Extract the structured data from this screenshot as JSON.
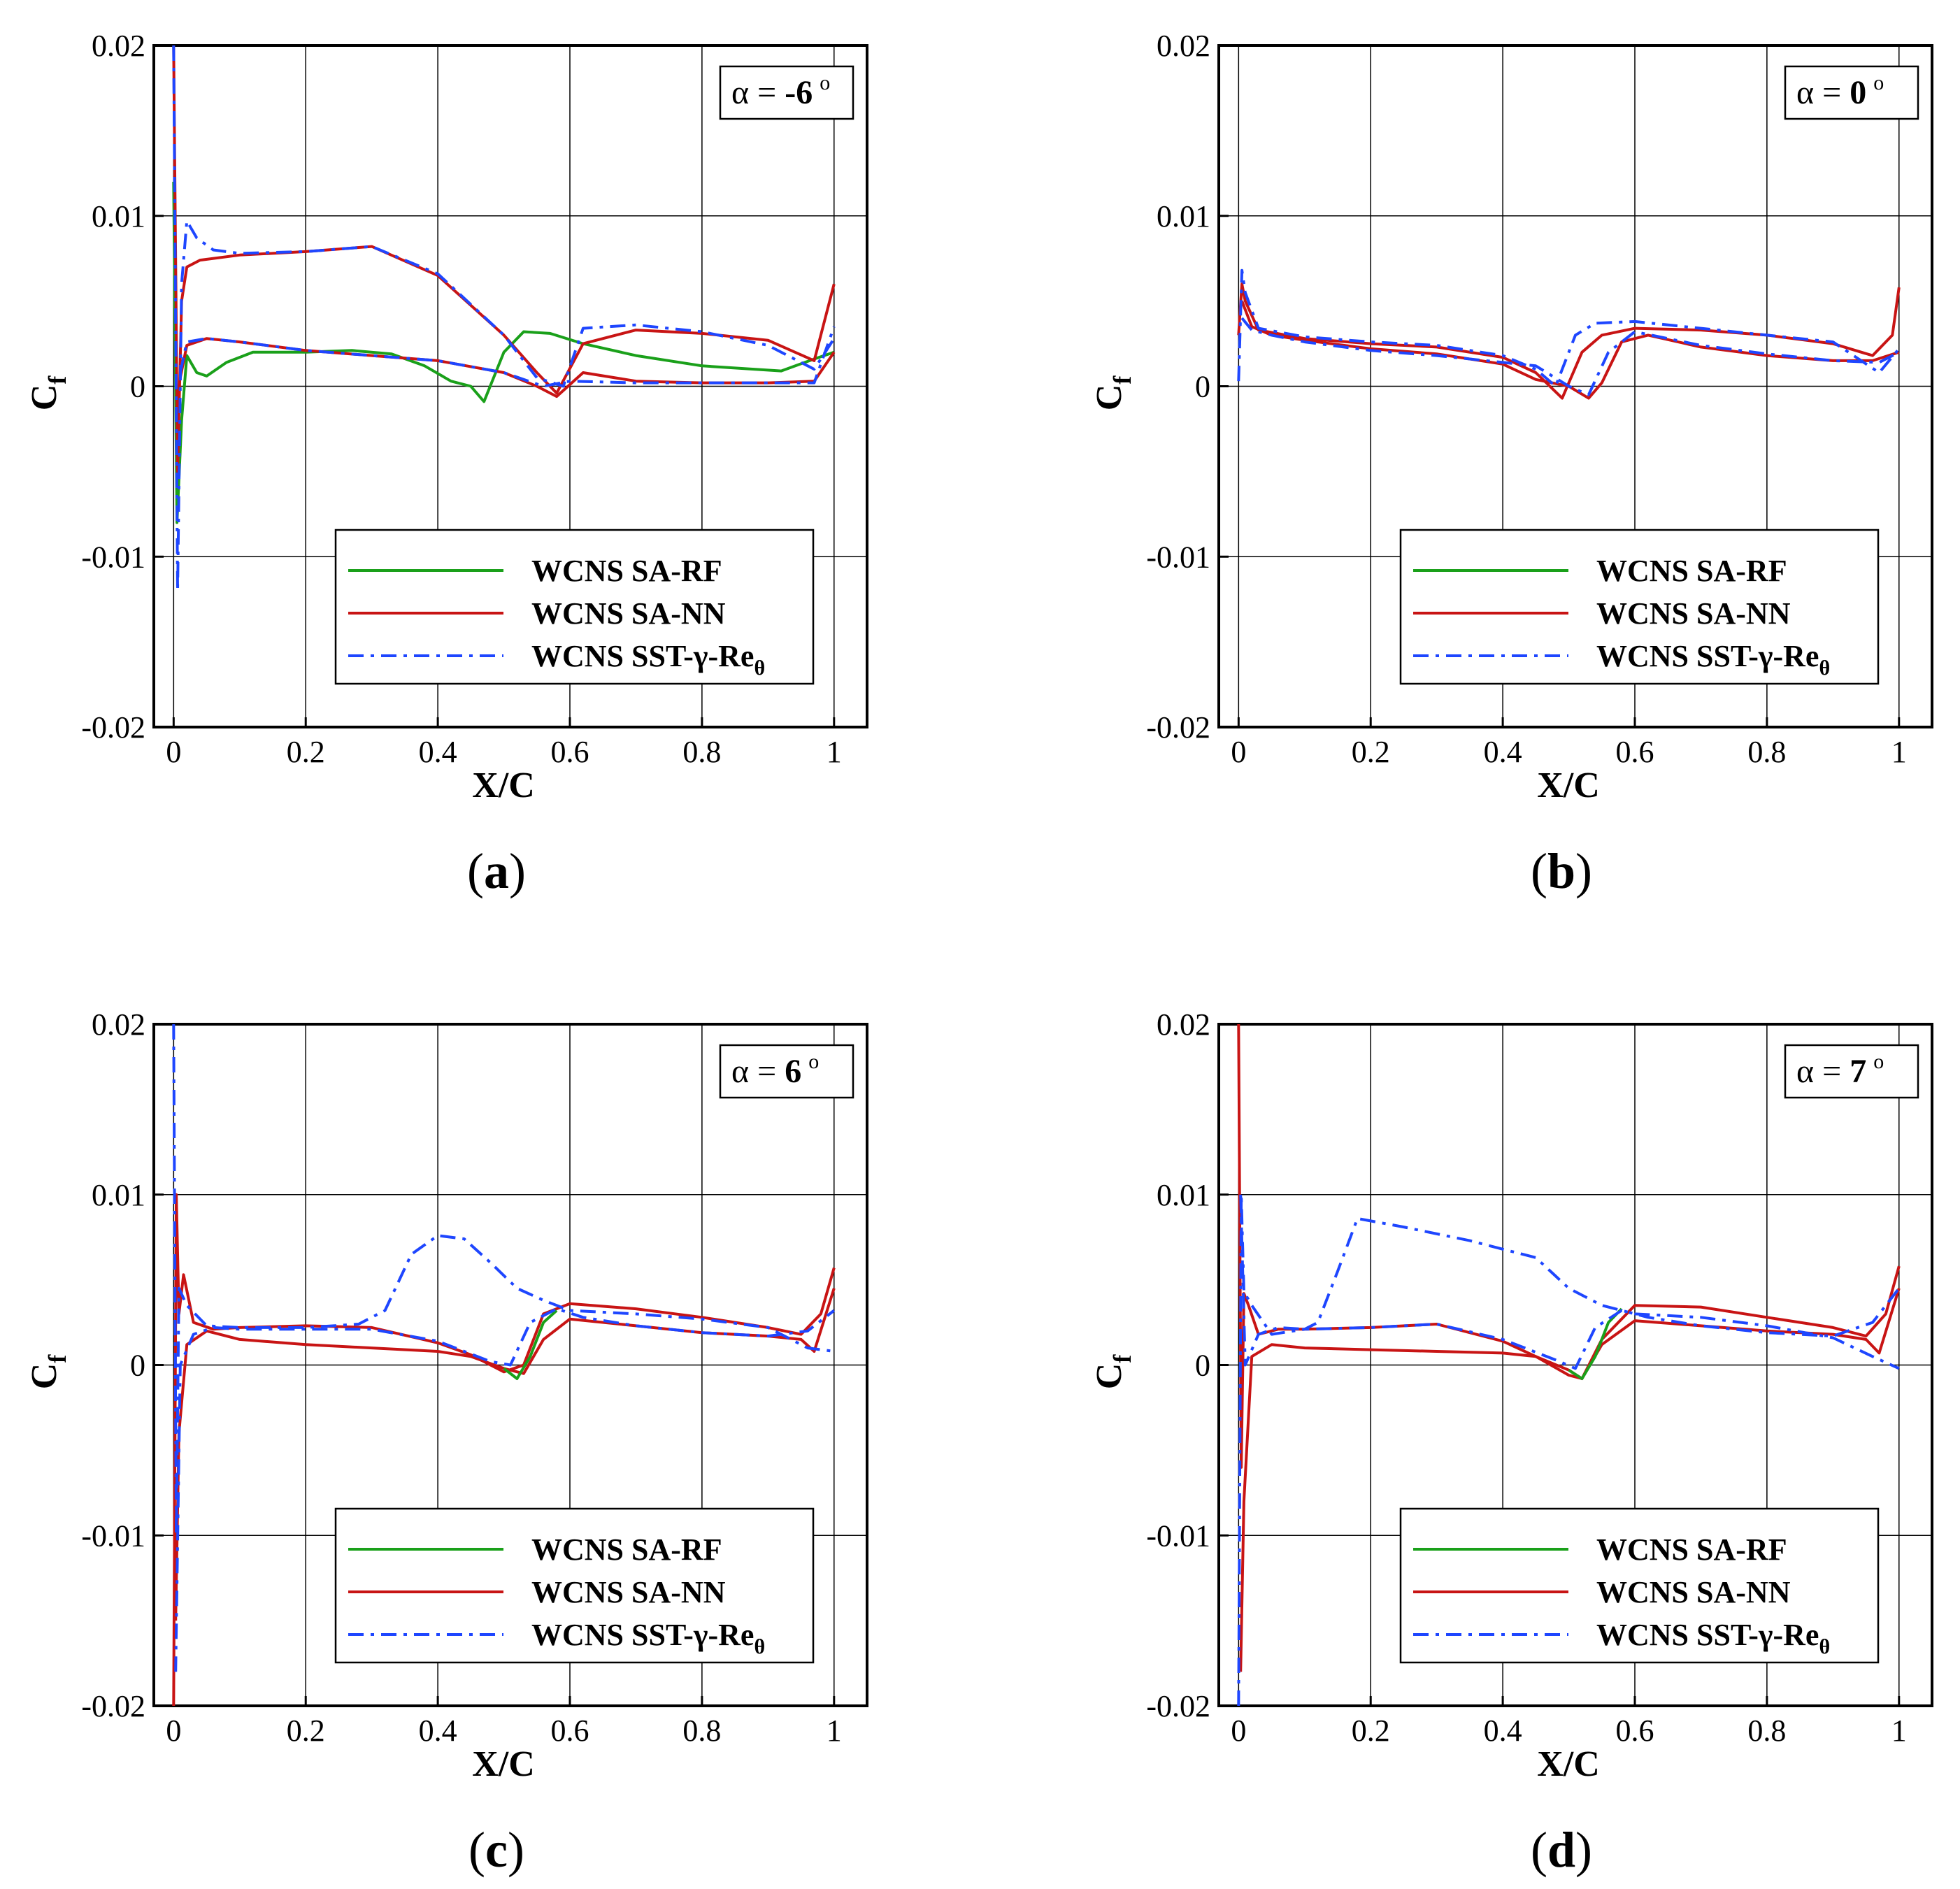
{
  "figure": {
    "ylabel_main": "C",
    "ylabel_sub": "f",
    "xlabel": "X/C",
    "legend": [
      {
        "label": "WCNS SA-RF",
        "sub": "",
        "color": "#1aa01a",
        "dash": "solid"
      },
      {
        "label": "WCNS SA-NN",
        "sub": "",
        "color": "#c81414",
        "dash": "solid"
      },
      {
        "label": "WCNS SST-γ-Re",
        "sub": "θ",
        "color": "#1e46ff",
        "dash": "dashdot"
      }
    ]
  },
  "chart_data": [
    {
      "type": "line",
      "caption_letter": "a",
      "alpha_label": "α = ",
      "alpha_value": "-6",
      "deg": "o",
      "xlabel": "X/C",
      "ylabel": "Cf",
      "xlim": [
        -0.03,
        1.05
      ],
      "ylim": [
        -0.02,
        0.02
      ],
      "xticks": [
        "0",
        "0.2",
        "0.4",
        "0.6",
        "0.8",
        "1"
      ],
      "yticks": [
        "-0.02",
        "-0.01",
        "0",
        "0.01",
        "0.02"
      ],
      "series": [
        {
          "name": "WCNS SA-RF",
          "x": [
            0,
            0.005,
            0.012,
            0.02,
            0.035,
            0.05,
            0.08,
            0.12,
            0.2,
            0.27,
            0.33,
            0.38,
            0.42,
            0.45,
            0.47,
            0.5,
            0.53,
            0.57,
            0.62,
            0.7,
            0.8,
            0.92,
            0.97,
            1.0
          ],
          "y": [
            0.012,
            -0.008,
            -0.002,
            0.0018,
            0.0008,
            0.0006,
            0.0014,
            0.002,
            0.002,
            0.0021,
            0.0019,
            0.0012,
            0.0003,
            0.0,
            -0.0009,
            0.002,
            0.0032,
            0.0031,
            0.0025,
            0.0018,
            0.0012,
            0.0009,
            0.0016,
            0.002
          ]
        },
        {
          "name": "WCNS SA-NN (upper)",
          "x": [
            0,
            0.006,
            0.012,
            0.02,
            0.04,
            0.1,
            0.2,
            0.3,
            0.4,
            0.5,
            0.55,
            0.58,
            0.62,
            0.7,
            0.8,
            0.9,
            0.97,
            1.0
          ],
          "y": [
            0.02,
            -0.005,
            0.005,
            0.007,
            0.0074,
            0.0077,
            0.0079,
            0.0082,
            0.0065,
            0.003,
            0.0008,
            -0.0004,
            0.0025,
            0.0033,
            0.0031,
            0.0027,
            0.0015,
            0.006
          ]
        },
        {
          "name": "WCNS SA-NN (lower)",
          "x": [
            0.01,
            0.02,
            0.05,
            0.1,
            0.2,
            0.3,
            0.4,
            0.5,
            0.55,
            0.58,
            0.62,
            0.7,
            0.8,
            0.9,
            0.97,
            1.0
          ],
          "y": [
            0.0005,
            0.0024,
            0.0028,
            0.0026,
            0.0021,
            0.0018,
            0.0015,
            0.0008,
            0.0,
            -0.0006,
            0.0008,
            0.0003,
            0.0002,
            0.0002,
            0.0003,
            0.002
          ]
        },
        {
          "name": "WCNS SST-γ-Reθ (upper)",
          "x": [
            0,
            0.006,
            0.012,
            0.02,
            0.035,
            0.06,
            0.1,
            0.2,
            0.3,
            0.4,
            0.5,
            0.55,
            0.59,
            0.62,
            0.7,
            0.8,
            0.9,
            0.97,
            1.0
          ],
          "y": [
            0.02,
            -0.012,
            0.006,
            0.0097,
            0.0087,
            0.008,
            0.0078,
            0.0079,
            0.0082,
            0.0066,
            0.003,
            0.0005,
            0.0,
            0.0034,
            0.0036,
            0.0032,
            0.0024,
            0.001,
            0.0028
          ]
        },
        {
          "name": "WCNS SST-γ-Reθ (lower)",
          "x": [
            0.01,
            0.02,
            0.05,
            0.1,
            0.2,
            0.3,
            0.4,
            0.5,
            0.56,
            0.6,
            0.7,
            0.8,
            0.9,
            0.97,
            1.0
          ],
          "y": [
            0.0008,
            0.0026,
            0.0028,
            0.0026,
            0.0021,
            0.0018,
            0.0015,
            0.0008,
            0.0,
            0.0003,
            0.0002,
            0.0002,
            0.0002,
            0.0002,
            0.0035
          ]
        }
      ]
    },
    {
      "type": "line",
      "caption_letter": "b",
      "alpha_label": "α = ",
      "alpha_value": "0",
      "deg": "o",
      "xlabel": "X/C",
      "ylabel": "Cf",
      "xlim": [
        -0.03,
        1.05
      ],
      "ylim": [
        -0.02,
        0.02
      ],
      "xticks": [
        "0",
        "0.2",
        "0.4",
        "0.6",
        "0.8",
        "1"
      ],
      "yticks": [
        "-0.02",
        "-0.01",
        "0",
        "0.01",
        "0.02"
      ],
      "series": [
        {
          "name": "WCNS SA-NN (upper)",
          "x": [
            0,
            0.005,
            0.01,
            0.03,
            0.1,
            0.2,
            0.3,
            0.4,
            0.45,
            0.49,
            0.52,
            0.55,
            0.6,
            0.7,
            0.8,
            0.9,
            0.96,
            0.99,
            1.0
          ],
          "y": [
            0.003,
            0.006,
            0.005,
            0.0033,
            0.0028,
            0.0025,
            0.0023,
            0.0017,
            0.0008,
            -0.0007,
            0.002,
            0.003,
            0.0034,
            0.0033,
            0.003,
            0.0025,
            0.0018,
            0.003,
            0.0058
          ]
        },
        {
          "name": "WCNS SA-NN (lower)",
          "x": [
            0.005,
            0.02,
            0.05,
            0.1,
            0.2,
            0.3,
            0.4,
            0.45,
            0.5,
            0.53,
            0.55,
            0.58,
            0.62,
            0.7,
            0.8,
            0.9,
            0.96,
            1.0
          ],
          "y": [
            0.005,
            0.0035,
            0.003,
            0.0027,
            0.0022,
            0.0019,
            0.0013,
            0.0004,
            0.0,
            -0.0007,
            0.0002,
            0.0026,
            0.003,
            0.0023,
            0.0018,
            0.0015,
            0.0015,
            0.002
          ]
        },
        {
          "name": "WCNS SST-γ-Reθ (upper)",
          "x": [
            0,
            0.005,
            0.01,
            0.03,
            0.1,
            0.2,
            0.3,
            0.4,
            0.45,
            0.48,
            0.51,
            0.54,
            0.6,
            0.7,
            0.8,
            0.9,
            0.97,
            1.0
          ],
          "y": [
            0.0003,
            0.0068,
            0.0055,
            0.0034,
            0.0029,
            0.0026,
            0.0024,
            0.0018,
            0.001,
            0.0,
            0.003,
            0.0037,
            0.0038,
            0.0034,
            0.003,
            0.0026,
            0.0008,
            0.0022
          ]
        },
        {
          "name": "WCNS SST-γ-Reθ (lower)",
          "x": [
            0.005,
            0.02,
            0.05,
            0.1,
            0.2,
            0.3,
            0.4,
            0.45,
            0.5,
            0.53,
            0.56,
            0.6,
            0.7,
            0.8,
            0.9,
            0.97,
            1.0
          ],
          "y": [
            0.004,
            0.0033,
            0.003,
            0.0026,
            0.0021,
            0.0018,
            0.0014,
            0.0012,
            0.0,
            -0.0005,
            0.002,
            0.0032,
            0.0024,
            0.0019,
            0.0015,
            0.0014,
            0.002
          ]
        }
      ]
    },
    {
      "type": "line",
      "caption_letter": "c",
      "alpha_label": "α = ",
      "alpha_value": "6",
      "deg": "o",
      "xlabel": "X/C",
      "ylabel": "Cf",
      "xlim": [
        -0.03,
        1.05
      ],
      "ylim": [
        -0.02,
        0.02
      ],
      "xticks": [
        "0",
        "0.2",
        "0.4",
        "0.6",
        "0.8",
        "1"
      ],
      "yticks": [
        "-0.02",
        "-0.01",
        "0",
        "0.01",
        "0.02"
      ],
      "series": [
        {
          "name": "WCNS SA-NN (upper)",
          "x": [
            0,
            0.004,
            0.008,
            0.015,
            0.03,
            0.06,
            0.1,
            0.2,
            0.3,
            0.4,
            0.45,
            0.5,
            0.53,
            0.56,
            0.6,
            0.7,
            0.8,
            0.9,
            0.95,
            0.98,
            1.0
          ],
          "y": [
            -0.02,
            0.01,
            0.003,
            0.0053,
            0.0025,
            0.0021,
            0.0022,
            0.0023,
            0.0022,
            0.0013,
            0.0006,
            -0.0004,
            0.0,
            0.003,
            0.0036,
            0.0033,
            0.0028,
            0.0022,
            0.0018,
            0.003,
            0.0057
          ]
        },
        {
          "name": "WCNS SA-NN (lower)",
          "x": [
            0.003,
            0.008,
            0.02,
            0.05,
            0.1,
            0.2,
            0.3,
            0.4,
            0.45,
            0.5,
            0.53,
            0.56,
            0.6,
            0.7,
            0.8,
            0.9,
            0.95,
            0.97,
            1.0
          ],
          "y": [
            -0.015,
            -0.004,
            0.0012,
            0.002,
            0.0015,
            0.0012,
            0.001,
            0.0008,
            0.0005,
            -0.0002,
            -0.0005,
            0.0015,
            0.0027,
            0.0023,
            0.0019,
            0.0017,
            0.0015,
            0.0008,
            0.0045
          ]
        },
        {
          "name": "WCNS SA-RF",
          "x": [
            0.5,
            0.52,
            0.54,
            0.56,
            0.58
          ],
          "y": [
            -0.0002,
            -0.0008,
            0.0005,
            0.0025,
            0.0032
          ]
        },
        {
          "name": "WCNS SST-γ-Reθ (upper)",
          "x": [
            0,
            0.004,
            0.008,
            0.02,
            0.05,
            0.1,
            0.2,
            0.28,
            0.32,
            0.36,
            0.4,
            0.44,
            0.48,
            0.52,
            0.56,
            0.6,
            0.7,
            0.8,
            0.9,
            0.96,
            1.0
          ],
          "y": [
            0.02,
            -0.01,
            0.0045,
            0.0035,
            0.0023,
            0.0022,
            0.0022,
            0.0024,
            0.0032,
            0.0065,
            0.0076,
            0.0074,
            0.006,
            0.0045,
            0.0038,
            0.0032,
            0.003,
            0.0027,
            0.0022,
            0.001,
            0.0008
          ]
        },
        {
          "name": "WCNS SST-γ-Reθ (lower)",
          "x": [
            0.003,
            0.01,
            0.03,
            0.06,
            0.1,
            0.2,
            0.3,
            0.4,
            0.48,
            0.51,
            0.54,
            0.58,
            0.62,
            0.7,
            0.8,
            0.9,
            0.96,
            1.0
          ],
          "y": [
            -0.018,
            0.0,
            0.0018,
            0.0022,
            0.0021,
            0.0021,
            0.0021,
            0.0014,
            0.0002,
            0.0,
            0.0025,
            0.0033,
            0.0028,
            0.0023,
            0.0019,
            0.0017,
            0.002,
            0.0032
          ]
        }
      ]
    },
    {
      "type": "line",
      "caption_letter": "d",
      "alpha_label": "α = ",
      "alpha_value": "7",
      "deg": "o",
      "xlabel": "X/C",
      "ylabel": "Cf",
      "xlim": [
        -0.03,
        1.05
      ],
      "ylim": [
        -0.02,
        0.02
      ],
      "xticks": [
        "0",
        "0.2",
        "0.4",
        "0.6",
        "0.8",
        "1"
      ],
      "yticks": [
        "-0.02",
        "-0.01",
        "0",
        "0.01",
        "0.02"
      ],
      "series": [
        {
          "name": "WCNS SA-NN (upper)",
          "x": [
            0,
            0.004,
            0.008,
            0.015,
            0.03,
            0.06,
            0.1,
            0.2,
            0.3,
            0.4,
            0.45,
            0.5,
            0.52,
            0.55,
            0.6,
            0.7,
            0.8,
            0.9,
            0.95,
            0.98,
            1.0
          ],
          "y": [
            0.02,
            -0.006,
            0.0042,
            0.0035,
            0.0018,
            0.0021,
            0.0021,
            0.0022,
            0.0024,
            0.0014,
            0.0005,
            -0.0006,
            -0.0008,
            0.0015,
            0.0035,
            0.0034,
            0.0028,
            0.0022,
            0.0017,
            0.003,
            0.0058
          ]
        },
        {
          "name": "WCNS SA-NN (lower)",
          "x": [
            0.003,
            0.008,
            0.02,
            0.05,
            0.1,
            0.2,
            0.3,
            0.4,
            0.45,
            0.5,
            0.52,
            0.55,
            0.6,
            0.7,
            0.8,
            0.9,
            0.95,
            0.97,
            1.0
          ],
          "y": [
            -0.018,
            -0.008,
            0.0005,
            0.0012,
            0.001,
            0.0009,
            0.0008,
            0.0007,
            0.0005,
            -0.0003,
            -0.0008,
            0.0012,
            0.0026,
            0.0023,
            0.002,
            0.0018,
            0.0015,
            0.0007,
            0.0045
          ]
        },
        {
          "name": "WCNS SA-RF",
          "x": [
            0.5,
            0.52,
            0.54,
            0.56,
            0.58
          ],
          "y": [
            -0.0003,
            -0.0008,
            0.0005,
            0.0025,
            0.0033
          ]
        },
        {
          "name": "WCNS SST-γ-Reθ (upper)",
          "x": [
            0,
            0.004,
            0.008,
            0.02,
            0.05,
            0.1,
            0.12,
            0.15,
            0.18,
            0.25,
            0.35,
            0.45,
            0.5,
            0.55,
            0.6,
            0.7,
            0.8,
            0.9,
            0.96,
            1.0
          ],
          "y": [
            -0.02,
            0.01,
            0.0043,
            0.0035,
            0.0018,
            0.0021,
            0.0025,
            0.0055,
            0.0086,
            0.0081,
            0.0073,
            0.0063,
            0.0045,
            0.0035,
            0.003,
            0.0028,
            0.0023,
            0.0016,
            0.0005,
            -0.0002
          ]
        },
        {
          "name": "WCNS SST-γ-Reθ (lower)",
          "x": [
            0.003,
            0.01,
            0.03,
            0.06,
            0.1,
            0.2,
            0.3,
            0.4,
            0.48,
            0.51,
            0.54,
            0.58,
            0.62,
            0.7,
            0.8,
            0.9,
            0.96,
            1.0
          ],
          "y": [
            0.01,
            0.0,
            0.0018,
            0.0022,
            0.0021,
            0.0022,
            0.0024,
            0.0015,
            0.0003,
            -0.0002,
            0.0022,
            0.0032,
            0.0028,
            0.0023,
            0.0019,
            0.0017,
            0.0025,
            0.0045
          ]
        }
      ]
    }
  ]
}
